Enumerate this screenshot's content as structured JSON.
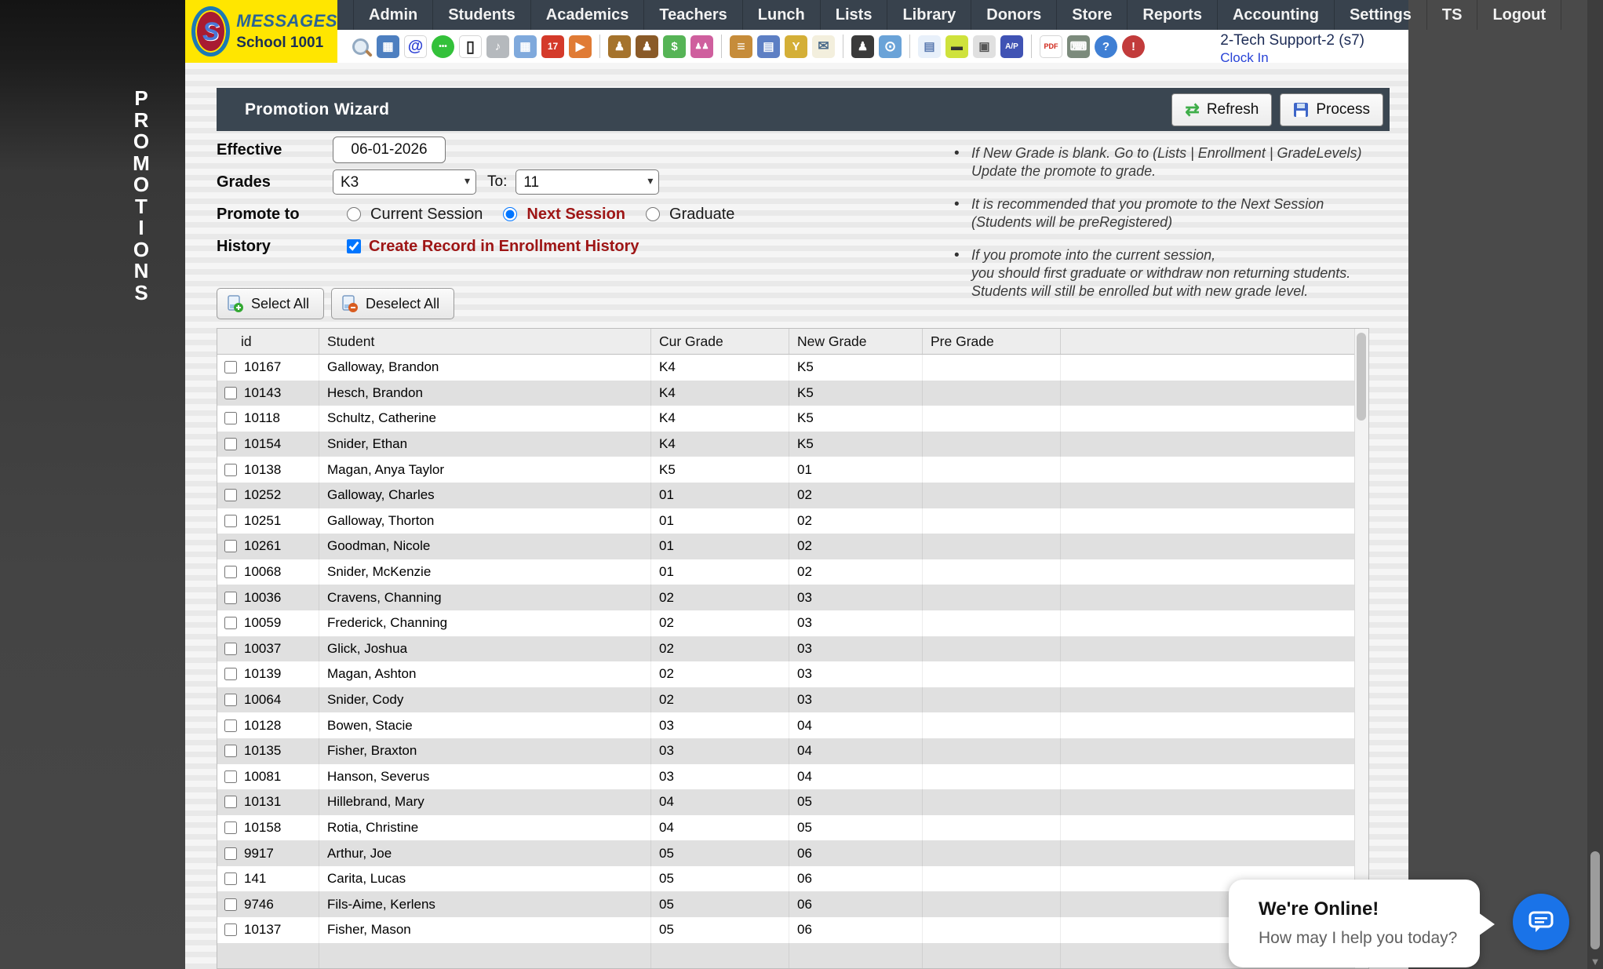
{
  "brand": {
    "name": "MESSAGES",
    "school": "School 1001",
    "monogram": "S"
  },
  "nav": {
    "items": [
      "Admin",
      "Students",
      "Academics",
      "Teachers",
      "Lunch",
      "Lists",
      "Library",
      "Donors",
      "Store",
      "Reports",
      "Accounting",
      "Settings",
      "TS",
      "Logout"
    ]
  },
  "toolbar": {
    "user": "2-Tech Support-2 (s7)",
    "clock_in": "Clock In",
    "icons": [
      {
        "name": "search-icon",
        "shape": "magnifier"
      },
      {
        "name": "apps-grid-icon",
        "glyph": "▦",
        "bg": "#4d7fc0",
        "fg": "#ffffff"
      },
      {
        "name": "email-icon",
        "glyph": "@",
        "bg": "#ffffff",
        "fg": "#2b3fd4",
        "size": "20"
      },
      {
        "name": "sms-icon",
        "glyph": "•••",
        "bg": "#33c13a",
        "fg": "#ffffff",
        "size": "10",
        "round": true
      },
      {
        "name": "phone-icon",
        "glyph": "▯",
        "bg": "#ffffff",
        "fg": "#222222",
        "size": "20"
      },
      {
        "name": "intercom-icon",
        "glyph": "♪",
        "bg": "#b5b9bd",
        "fg": "#ffffff"
      },
      {
        "name": "schedule-icon",
        "glyph": "▦",
        "bg": "#7fa9dc",
        "fg": "#ffffff"
      },
      {
        "name": "calendar-icon",
        "glyph": "17",
        "bg": "#d43a2a",
        "fg": "#ffffff",
        "size": "12"
      },
      {
        "name": "announcement-icon",
        "glyph": "▶",
        "bg": "#e07b35",
        "fg": "#ffffff"
      },
      {
        "sep": true
      },
      {
        "name": "student-icon",
        "glyph": "♟",
        "bg": "#a5732c",
        "fg": "#ffffff"
      },
      {
        "name": "person-icon",
        "glyph": "♟",
        "bg": "#8a5a28",
        "fg": "#ffffff"
      },
      {
        "name": "tuition-icon",
        "glyph": "$",
        "bg": "#56b456",
        "fg": "#ffffff"
      },
      {
        "name": "family-icon",
        "glyph": "♟♟",
        "bg": "#cf5f9e",
        "fg": "#ffffff",
        "size": "10"
      },
      {
        "sep": true
      },
      {
        "name": "lunch-icon",
        "glyph": "≡",
        "bg": "#c68c3a",
        "fg": "#ffffff",
        "size": "18"
      },
      {
        "name": "library-icon",
        "glyph": "▤",
        "bg": "#5d7fc4",
        "fg": "#ffffff"
      },
      {
        "name": "awards-icon",
        "glyph": "Y",
        "bg": "#d4af37",
        "fg": "#ffffff"
      },
      {
        "name": "mail-money-icon",
        "glyph": "✉",
        "bg": "#f3efdd",
        "fg": "#4a6a8a",
        "size": "17"
      },
      {
        "sep": true
      },
      {
        "name": "staff-icon",
        "glyph": "♟",
        "bg": "#3a3a3a",
        "fg": "#ffffff"
      },
      {
        "name": "time-clock-icon",
        "glyph": "⊙",
        "bg": "#6aa3d8",
        "fg": "#ffffff",
        "size": "18"
      },
      {
        "sep": true
      },
      {
        "name": "invoice-icon",
        "glyph": "▤",
        "bg": "#e8f0fa",
        "fg": "#5a7ab0"
      },
      {
        "name": "payment-card-icon",
        "glyph": "▬",
        "bg": "#cfe23c",
        "fg": "#333333"
      },
      {
        "name": "print-checks-icon",
        "glyph": "▣",
        "bg": "#e0e0e0",
        "fg": "#555555"
      },
      {
        "name": "ap-icon",
        "glyph": "A/P",
        "bg": "#4053b4",
        "fg": "#ffffff",
        "size": "10"
      },
      {
        "sep": true
      },
      {
        "name": "pdf-icon",
        "glyph": "PDF",
        "bg": "#ffffff",
        "fg": "#cf2418",
        "size": "9"
      },
      {
        "name": "cash-register-icon",
        "glyph": "⌨",
        "bg": "#7c8b7c",
        "fg": "#ffffff"
      },
      {
        "name": "help-icon",
        "glyph": "?",
        "bg": "#3f7fd4",
        "fg": "#ffffff",
        "round": true
      },
      {
        "name": "alert-icon",
        "glyph": "!",
        "bg": "#c23b3b",
        "fg": "#ffffff",
        "round": true
      }
    ]
  },
  "sidebar": {
    "vertical_label": "PROMOTIONS"
  },
  "wizard": {
    "title": "Promotion Wizard",
    "refresh_label": "Refresh",
    "process_label": "Process",
    "effective_label": "Effective",
    "effective_value": "06-01-2026",
    "grades_label": "Grades",
    "grade_from": "K3",
    "to_label": "To:",
    "grade_to": "11",
    "promote_label": "Promote to",
    "promote_options": [
      {
        "label": "Current Session",
        "checked": false
      },
      {
        "label": "Next Session",
        "checked": true
      },
      {
        "label": "Graduate",
        "checked": false
      }
    ],
    "history_label": "History",
    "history_text": "Create Record in Enrollment History",
    "history_checked": true,
    "notes": [
      {
        "lines": [
          "If New Grade is blank. Go to (Lists | Enrollment | GradeLevels)",
          "Update the promote to grade."
        ]
      },
      {
        "lines": [
          "It is recommended that you promote to the Next Session",
          "(Students will be preRegistered)"
        ]
      },
      {
        "lines": [
          "If you promote into the current session,",
          "you should first graduate or withdraw non returning students.",
          "Students will still be enrolled but with new grade level."
        ]
      }
    ]
  },
  "actions": {
    "select_all": "Select All",
    "deselect_all": "Deselect All"
  },
  "table": {
    "columns": [
      "id",
      "Student",
      "Cur Grade",
      "New Grade",
      "Pre Grade",
      ""
    ],
    "rows": [
      {
        "id": "10167",
        "student": "Galloway, Brandon",
        "cur": "K4",
        "new": "K5",
        "pre": ""
      },
      {
        "id": "10143",
        "student": "Hesch, Brandon",
        "cur": "K4",
        "new": "K5",
        "pre": ""
      },
      {
        "id": "10118",
        "student": "Schultz, Catherine",
        "cur": "K4",
        "new": "K5",
        "pre": ""
      },
      {
        "id": "10154",
        "student": "Snider, Ethan",
        "cur": "K4",
        "new": "K5",
        "pre": ""
      },
      {
        "id": "10138",
        "student": "Magan, Anya Taylor",
        "cur": "K5",
        "new": "01",
        "pre": ""
      },
      {
        "id": "10252",
        "student": "Galloway, Charles",
        "cur": "01",
        "new": "02",
        "pre": ""
      },
      {
        "id": "10251",
        "student": "Galloway, Thorton",
        "cur": "01",
        "new": "02",
        "pre": ""
      },
      {
        "id": "10261",
        "student": "Goodman, Nicole",
        "cur": "01",
        "new": "02",
        "pre": ""
      },
      {
        "id": "10068",
        "student": "Snider, McKenzie",
        "cur": "01",
        "new": "02",
        "pre": ""
      },
      {
        "id": "10036",
        "student": "Cravens, Channing",
        "cur": "02",
        "new": "03",
        "pre": ""
      },
      {
        "id": "10059",
        "student": "Frederick, Channing",
        "cur": "02",
        "new": "03",
        "pre": ""
      },
      {
        "id": "10037",
        "student": "Glick, Joshua",
        "cur": "02",
        "new": "03",
        "pre": ""
      },
      {
        "id": "10139",
        "student": "Magan, Ashton",
        "cur": "02",
        "new": "03",
        "pre": ""
      },
      {
        "id": "10064",
        "student": "Snider, Cody",
        "cur": "02",
        "new": "03",
        "pre": ""
      },
      {
        "id": "10128",
        "student": "Bowen, Stacie",
        "cur": "03",
        "new": "04",
        "pre": ""
      },
      {
        "id": "10135",
        "student": "Fisher, Braxton",
        "cur": "03",
        "new": "04",
        "pre": ""
      },
      {
        "id": "10081",
        "student": "Hanson, Severus",
        "cur": "03",
        "new": "04",
        "pre": ""
      },
      {
        "id": "10131",
        "student": "Hillebrand, Mary",
        "cur": "04",
        "new": "05",
        "pre": ""
      },
      {
        "id": "10158",
        "student": "Rotia, Christine",
        "cur": "04",
        "new": "05",
        "pre": ""
      },
      {
        "id": "9917",
        "student": "Arthur, Joe",
        "cur": "05",
        "new": "06",
        "pre": ""
      },
      {
        "id": "141",
        "student": "Carita, Lucas",
        "cur": "05",
        "new": "06",
        "pre": ""
      },
      {
        "id": "9746",
        "student": "Fils-Aime, Kerlens",
        "cur": "05",
        "new": "06",
        "pre": ""
      },
      {
        "id": "10137",
        "student": "Fisher, Mason",
        "cur": "05",
        "new": "06",
        "pre": ""
      },
      {
        "id": "",
        "student": "",
        "cur": "",
        "new": "",
        "pre": "",
        "empty": true
      }
    ]
  },
  "chat": {
    "title": "We're Online!",
    "subtitle": "How may I help you today?"
  },
  "colors": {
    "accent_yellow": "#ffe600",
    "nav_slate": "#38424d",
    "header_slate": "#3a4651",
    "warn_red": "#9e1515",
    "link_blue": "#2742d6",
    "chat_blue": "#1a73e8"
  }
}
